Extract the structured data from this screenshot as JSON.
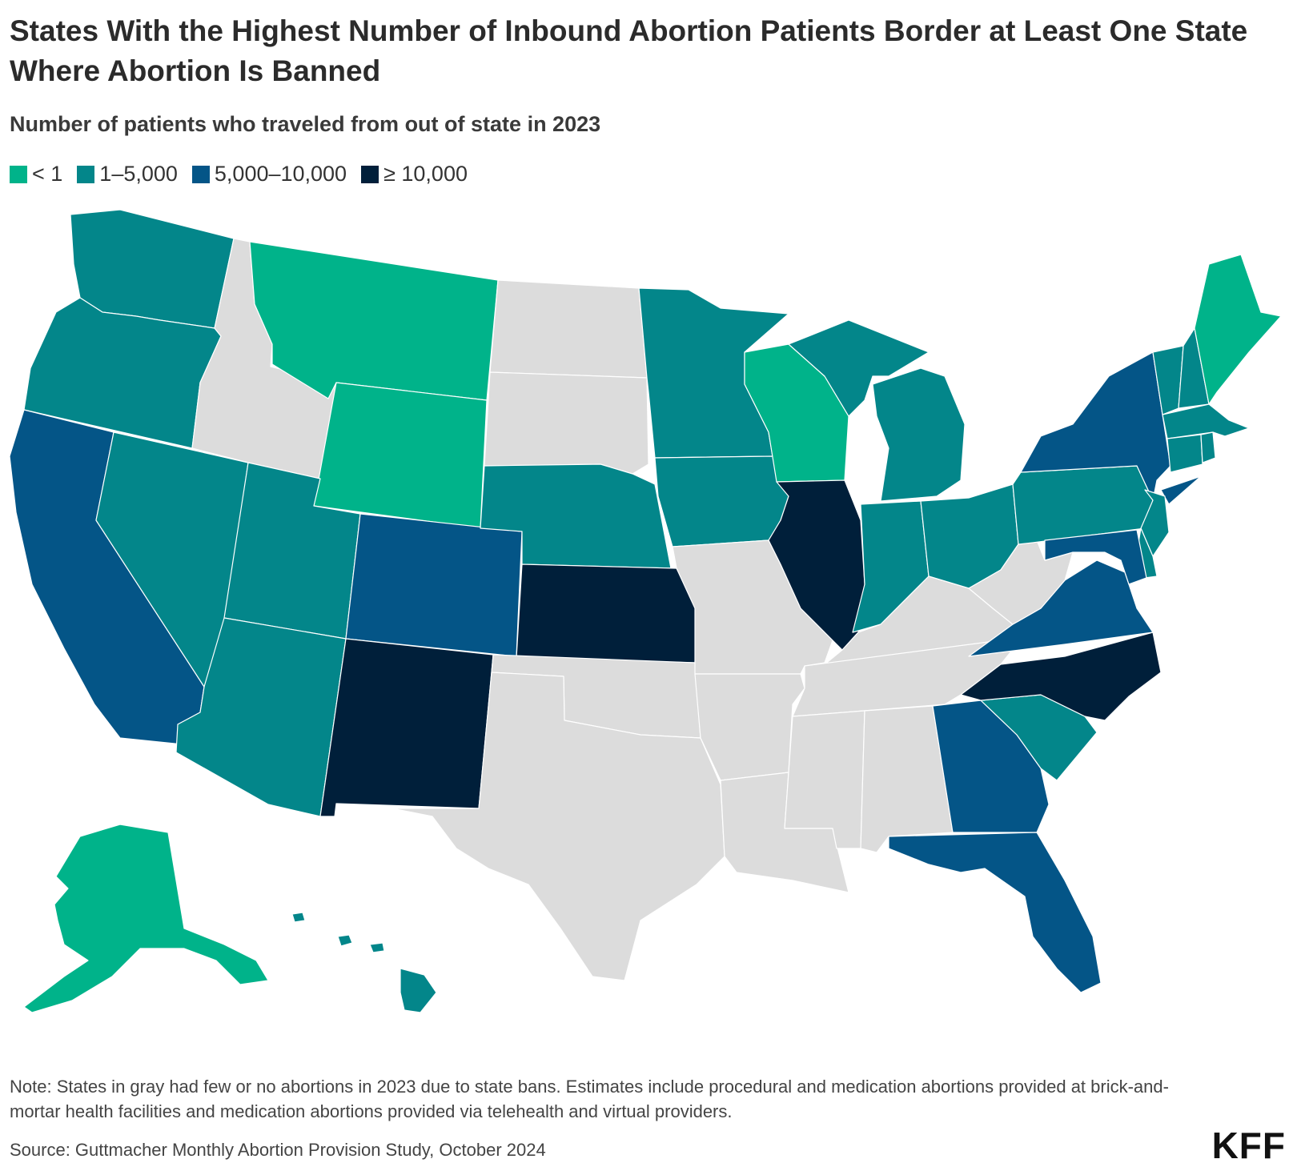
{
  "title": "States With the Highest Number of Inbound Abortion Patients Border at Least One State Where Abortion Is Banned",
  "subtitle": "Number of patients who traveled from out of state in 2023",
  "legend": [
    {
      "label": "< 1",
      "color": "#00b38a"
    },
    {
      "label": "1–5,000",
      "color": "#03868a"
    },
    {
      "label": "5,000–10,000",
      "color": "#045587"
    },
    {
      "label": "≥ 10,000",
      "color": "#001f3a"
    }
  ],
  "banned_color": "#dcdcdc",
  "states": {
    "WA": "1-5000",
    "OR": "1-5000",
    "CA": "5000-10000",
    "NV": "1-5000",
    "ID": "banned",
    "MT": "lt1",
    "WY": "lt1",
    "UT": "1-5000",
    "AZ": "1-5000",
    "CO": "5000-10000",
    "NM": "gte10000",
    "ND": "banned",
    "SD": "banned",
    "NE": "1-5000",
    "KS": "gte10000",
    "OK": "banned",
    "TX": "banned",
    "MN": "1-5000",
    "IA": "1-5000",
    "MO": "banned",
    "AR": "banned",
    "LA": "banned",
    "WI": "lt1",
    "IL": "gte10000",
    "MI": "1-5000",
    "IN": "1-5000",
    "OH": "1-5000",
    "KY": "banned",
    "TN": "banned",
    "MS": "banned",
    "AL": "banned",
    "GA": "5000-10000",
    "FL": "5000-10000",
    "SC": "1-5000",
    "NC": "gte10000",
    "VA": "5000-10000",
    "WV": "banned",
    "PA": "1-5000",
    "NY": "5000-10000",
    "NJ": "1-5000",
    "DE": "1-5000",
    "MD": "5000-10000",
    "CT": "1-5000",
    "RI": "1-5000",
    "MA": "1-5000",
    "VT": "1-5000",
    "NH": "1-5000",
    "ME": "lt1",
    "AK": "lt1",
    "HI": "1-5000"
  },
  "note": "Note: States in gray had few or no abortions in 2023 due to state bans. Estimates include procedural and medication abortions provided at brick-and-mortar health facilities and medication abortions provided via telehealth and virtual providers.",
  "source": "Source: Guttmacher Monthly Abortion Provision Study, October 2024",
  "logo": "KFF"
}
